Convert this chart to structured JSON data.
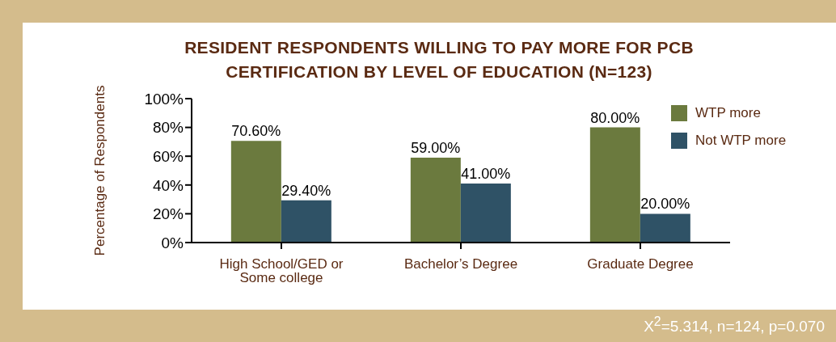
{
  "chart_data": {
    "type": "bar",
    "title": "RESIDENT RESPONDENTS WILLING TO PAY MORE FOR PCB CERTIFICATION BY LEVEL OF EDUCATION (N=123)",
    "ylabel": "Percentage of Respondents",
    "categories": [
      "High School/GED or Some college",
      "Bachelor’s Degree",
      "Graduate Degree"
    ],
    "series": [
      {
        "name": "WTP more",
        "color": "#6b7a3e",
        "values": [
          70.6,
          59,
          80
        ],
        "value_labels": [
          "70.60%",
          "59.00%",
          "80.00%"
        ]
      },
      {
        "name": "Not WTP more",
        "color": "#2f5266",
        "values": [
          29.4,
          41,
          20
        ],
        "value_labels": [
          "29.40%",
          "41.00%",
          "20.00%"
        ]
      }
    ],
    "ylim": [
      0,
      100
    ],
    "yticks": [
      {
        "value": 0,
        "label": "0%"
      },
      {
        "value": 20,
        "label": "20%"
      },
      {
        "value": 40,
        "label": "40%"
      },
      {
        "value": 60,
        "label": "60%"
      },
      {
        "value": 80,
        "label": "80%"
      },
      {
        "value": 100,
        "label": "100%"
      }
    ],
    "grid": false,
    "legend": "top right",
    "annotations": [
      "X$^{2}$=5.314, n=124, p=0.070"
    ]
  }
}
